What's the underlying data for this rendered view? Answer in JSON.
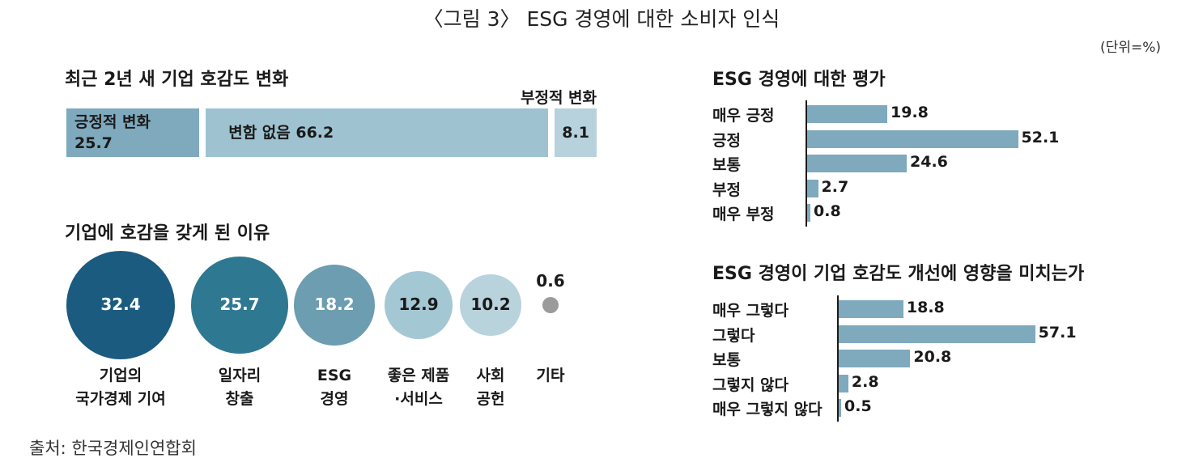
{
  "figure_title": "〈그림 3〉 ESG 경영에 대한 소비자 인식",
  "unit": "(단위=%)",
  "source": "출처: 한국경제인연합회",
  "colors": {
    "positive": "#7fa9bd",
    "neutral": "#9ec2d0",
    "negative": "#b7d2dd",
    "bar": "#7fa9bd",
    "bubble_1": "#1b5b7f",
    "bubble_2": "#2f7891",
    "bubble_3": "#6c9db1",
    "bubble_4": "#a4c7d4",
    "bubble_5": "#b9d3dd",
    "bubble_6": "#9b9b9b"
  },
  "chart_data": [
    {
      "type": "bar",
      "stacked": true,
      "orientation": "horizontal",
      "title": "최근 2년 새 기업 호감도 변화",
      "categories": [
        "긍정적 변화",
        "변함 없음",
        "부정적 변화"
      ],
      "values": [
        25.7,
        66.2,
        8.1
      ]
    },
    {
      "type": "scatter",
      "encoding": "bubble",
      "title": "기업에 호감을 갖게 된 이유",
      "categories": [
        "기업의 국가경제 기여",
        "일자리 창출",
        "ESG 경영",
        "좋은 제품 ·서비스",
        "사회 공헌",
        "기타"
      ],
      "values": [
        32.4,
        25.7,
        18.2,
        12.9,
        10.2,
        0.6
      ]
    },
    {
      "type": "bar",
      "orientation": "horizontal",
      "title": "ESG 경영에 대한 평가",
      "categories": [
        "매우 긍정",
        "긍정",
        "보통",
        "부정",
        "매우 부정"
      ],
      "values": [
        19.8,
        52.1,
        24.6,
        2.7,
        0.8
      ]
    },
    {
      "type": "bar",
      "orientation": "horizontal",
      "title": "ESG 경영이 기업 호감도 개선에 영향을 미치는가",
      "categories": [
        "매우 그렇다",
        "그렇다",
        "보통",
        "그렇지 않다",
        "매우 그렇지 않다"
      ],
      "values": [
        18.8,
        57.1,
        20.8,
        2.8,
        0.5
      ]
    }
  ],
  "stack_labels": {
    "pos_name": "긍정적 변화",
    "pos_value": "25.7",
    "neutral_text": "변함 없음 66.2",
    "neg_name": "부정적 변화",
    "neg_value": "8.1"
  },
  "bubble_captions": [
    [
      "기업의",
      "국가경제 기여"
    ],
    [
      "일자리",
      "창출"
    ],
    [
      "ESG",
      "경영"
    ],
    [
      "좋은 제품",
      "·서비스"
    ],
    [
      "사회",
      "공헌"
    ],
    [
      "기타"
    ]
  ]
}
